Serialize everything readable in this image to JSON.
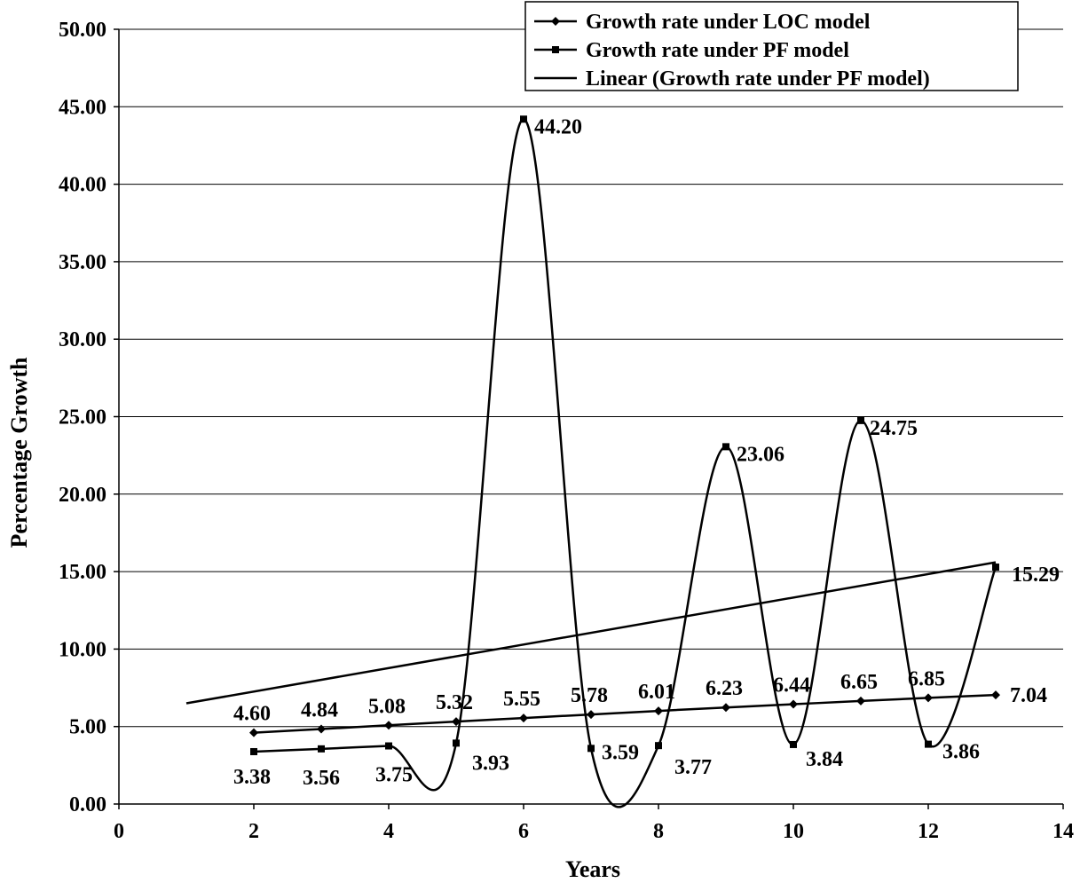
{
  "chart_data": {
    "type": "line",
    "title": "",
    "xlabel": "Years",
    "ylabel": "Percentage Growth",
    "xlim": [
      0,
      14
    ],
    "ylim": [
      0,
      50
    ],
    "x_ticks": [
      "0",
      "2",
      "4",
      "6",
      "8",
      "10",
      "12",
      "14"
    ],
    "y_ticks": [
      "0.00",
      "5.00",
      "10.00",
      "15.00",
      "20.00",
      "25.00",
      "30.00",
      "35.00",
      "40.00",
      "45.00",
      "50.00"
    ],
    "grid": "horizontal",
    "legend_position": "top-right",
    "series": [
      {
        "name": "Growth rate under LOC model",
        "marker": "diamond",
        "smooth": true,
        "x": [
          2,
          3,
          4,
          5,
          6,
          7,
          8,
          9,
          10,
          11,
          12,
          13
        ],
        "y": [
          4.6,
          4.84,
          5.08,
          5.32,
          5.55,
          5.78,
          6.01,
          6.23,
          6.44,
          6.65,
          6.85,
          7.04
        ],
        "labels": [
          "4.60",
          "4.84",
          "5.08",
          "5.32",
          "5.55",
          "5.78",
          "6.01",
          "6.23",
          "6.44",
          "6.65",
          "6.85",
          "7.04"
        ]
      },
      {
        "name": "Growth rate under PF model",
        "marker": "square",
        "smooth": true,
        "x": [
          2,
          3,
          4,
          5,
          6,
          7,
          8,
          9,
          10,
          11,
          12,
          13
        ],
        "y": [
          3.38,
          3.56,
          3.75,
          3.93,
          44.2,
          3.59,
          3.77,
          23.06,
          3.84,
          24.75,
          3.86,
          15.29
        ],
        "labels": [
          "3.38",
          "3.56",
          "3.75",
          "3.93",
          "44.20",
          "3.59",
          "3.77",
          "23.06",
          "3.84",
          "24.75",
          "3.86",
          "15.29"
        ]
      },
      {
        "name": "Linear (Growth rate under PF model)",
        "marker": "none",
        "smooth": false,
        "x": [
          1,
          13
        ],
        "y": [
          6.5,
          15.6
        ]
      }
    ]
  }
}
